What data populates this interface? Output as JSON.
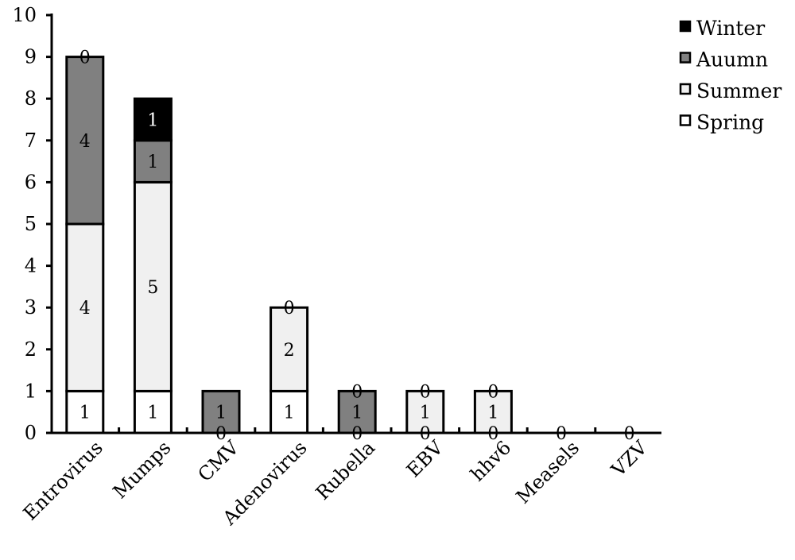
{
  "chart_data": {
    "type": "bar",
    "stacked": true,
    "categories": [
      "Entrovirus",
      "Mumps",
      "CMV",
      "Adenovirus",
      "Rubella",
      "EBV",
      "hhv6",
      "Measels",
      "VZV"
    ],
    "series": [
      {
        "name": "Spring",
        "color": "#ffffff",
        "values": [
          1,
          1,
          0,
          1,
          0,
          0,
          0,
          0,
          0
        ]
      },
      {
        "name": "Summer",
        "color": "#f0f0f0",
        "values": [
          4,
          5,
          0,
          2,
          0,
          1,
          1,
          0,
          0
        ]
      },
      {
        "name": "Auumn",
        "color": "#808080",
        "values": [
          4,
          1,
          1,
          0,
          1,
          0,
          0,
          0,
          0
        ]
      },
      {
        "name": "Winter",
        "color": "#000000",
        "values": [
          0,
          1,
          0,
          0,
          0,
          0,
          0,
          0,
          0
        ]
      }
    ],
    "data_labels": [
      [
        "1",
        "4",
        "4",
        "0"
      ],
      [
        "1",
        "5",
        "1",
        "1"
      ],
      [
        "1",
        "0"
      ],
      [
        "1",
        "2",
        "0"
      ],
      [
        "1",
        "0",
        "0"
      ],
      [
        "1",
        "0",
        "0"
      ],
      [
        "1",
        "0",
        "0"
      ],
      [
        "0"
      ],
      [
        "0"
      ]
    ],
    "ylim": [
      0,
      10
    ],
    "yticks": [
      "0",
      "1",
      "2",
      "3",
      "4",
      "5",
      "6",
      "7",
      "8",
      "9",
      "10"
    ],
    "legend": {
      "position": "top-right",
      "items": [
        "Winter",
        "Auumn",
        "Summer",
        "Spring"
      ]
    },
    "grid": false
  }
}
